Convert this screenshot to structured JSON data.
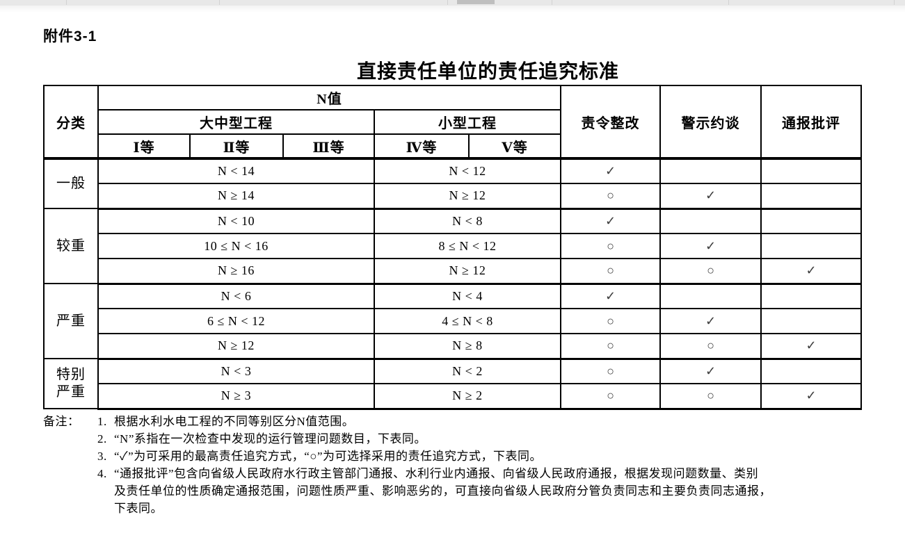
{
  "colors": {
    "top_bar": "#e8e8e8",
    "top_bar_thumb": "#bfbfbf",
    "table_border": "#000000"
  },
  "attachment_label": "附件3-1",
  "title": "直接责任单位的责任追究标准",
  "table": {
    "header": {
      "category": "分类",
      "n_value": "N值",
      "large_medium": "大中型工程",
      "small": "小型工程",
      "grades": [
        "Ⅰ等",
        "Ⅱ等",
        "Ⅲ等",
        "Ⅳ等",
        "Ⅴ等"
      ],
      "measures": [
        "责令整改",
        "警示约谈",
        "通报批评"
      ]
    },
    "symbols": {
      "check": "✓",
      "circle": "○"
    },
    "groups": [
      {
        "category": "一般",
        "rows": [
          {
            "large": "N < 14",
            "small": "N < 12",
            "marks": [
              "check",
              "",
              ""
            ]
          },
          {
            "large": "N ≥ 14",
            "small": "N ≥ 12",
            "marks": [
              "circle",
              "check",
              ""
            ]
          }
        ]
      },
      {
        "category": "较重",
        "rows": [
          {
            "large": "N < 10",
            "small": "N < 8",
            "marks": [
              "check",
              "",
              ""
            ]
          },
          {
            "large": "10 ≤ N < 16",
            "small": "8 ≤ N < 12",
            "marks": [
              "circle",
              "check",
              ""
            ]
          },
          {
            "large": "N ≥ 16",
            "small": "N ≥ 12",
            "marks": [
              "circle",
              "circle",
              "check"
            ]
          }
        ]
      },
      {
        "category": "严重",
        "rows": [
          {
            "large": "N < 6",
            "small": "N < 4",
            "marks": [
              "check",
              "",
              ""
            ]
          },
          {
            "large": "6 ≤ N < 12",
            "small": "4 ≤ N < 8",
            "marks": [
              "circle",
              "check",
              ""
            ]
          },
          {
            "large": "N ≥ 12",
            "small": "N ≥ 8",
            "marks": [
              "circle",
              "circle",
              "check"
            ]
          }
        ]
      },
      {
        "category": "特别\n严重",
        "rows": [
          {
            "large": "N < 3",
            "small": "N < 2",
            "marks": [
              "circle",
              "check",
              ""
            ]
          },
          {
            "large": "N ≥ 3",
            "small": "N ≥ 2",
            "marks": [
              "circle",
              "circle",
              "check"
            ]
          }
        ]
      }
    ]
  },
  "notes": {
    "label": "备注：",
    "items": [
      {
        "num": "1.",
        "text": "根据水利水电工程的不同等别区分N值范围。"
      },
      {
        "num": "2.",
        "text": "“N”系指在一次检查中发现的运行管理问题数目，下表同。"
      },
      {
        "num": "3.",
        "text": "“✓”为可采用的最高责任追究方式，“○”为可选择采用的责任追究方式，下表同。"
      },
      {
        "num": "4.",
        "text": "“通报批评”包含向省级人民政府水行政主管部门通报、水利行业内通报、向省级人民政府通报，根据发现问题数量、类别\n及责任单位的性质确定通报范围，问题性质严重、影响恶劣的，可直接向省级人民政府分管负责同志和主要负责同志通报，\n下表同。"
      }
    ]
  }
}
